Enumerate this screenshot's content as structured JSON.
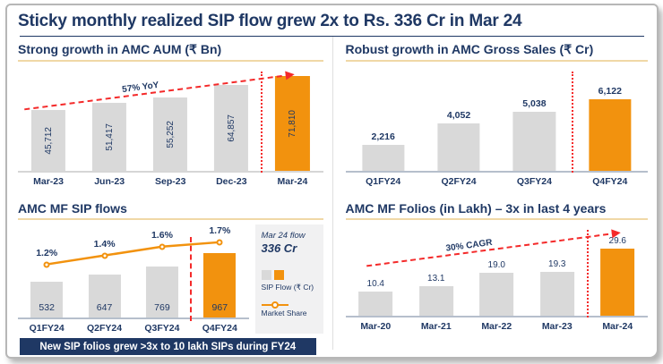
{
  "slide": {
    "title": "Sticky monthly realized SIP flow grew 2x to Rs. 336 Cr in Mar 24",
    "banner": "New SIP folios grew >3x to 10 lakh SIPs during FY24"
  },
  "colors": {
    "navy": "#1f3864",
    "orange": "#f2920e",
    "gray_bar": "#d9d9d9",
    "red": "#f42a2a",
    "section_underline": "#f0d8a6",
    "legend_bg": "#f1f1f2",
    "banner_bg": "#1f3864"
  },
  "chart_data": [
    {
      "id": "amc-aum",
      "type": "bar",
      "title": "Strong growth in AMC AUM (₹ Bn)",
      "categories": [
        "Mar-23",
        "Jun-23",
        "Sep-23",
        "Dec-23",
        "Mar-24"
      ],
      "values": [
        45712,
        51417,
        55252,
        64857,
        71810
      ],
      "value_labels": [
        "45,712",
        "51,417",
        "55,252",
        "64,857",
        "71,810"
      ],
      "highlight_index": 4,
      "highlight_color": "#f2920e",
      "annotation": "57% YoY",
      "ylim": [
        0,
        79000
      ],
      "label_position": "inside-rotated",
      "separator_before_last": true,
      "grid": false,
      "legend_position": "none"
    },
    {
      "id": "gross-sales",
      "type": "bar",
      "title": "Robust growth in AMC Gross Sales (₹ Cr)",
      "categories": [
        "Q1FY24",
        "Q2FY24",
        "Q3FY24",
        "Q4FY24"
      ],
      "values": [
        2216,
        4052,
        5038,
        6122
      ],
      "value_labels": [
        "2,216",
        "4,052",
        "5,038",
        "6,122"
      ],
      "highlight_index": 3,
      "highlight_color": "#f2920e",
      "ylim": [
        0,
        8900
      ],
      "label_position": "above",
      "separator_before_last": true,
      "grid": false,
      "legend_position": "none"
    },
    {
      "id": "sip-flows",
      "type": "bar+line",
      "title": "AMC MF SIP flows",
      "categories": [
        "Q1FY24",
        "Q2FY24",
        "Q3FY24",
        "Q4FY24"
      ],
      "series": [
        {
          "name": "SIP Flow (₹ Cr)",
          "type": "bar",
          "values": [
            532,
            647,
            769,
            967
          ],
          "value_labels": [
            "532",
            "647",
            "769",
            "967"
          ]
        },
        {
          "name": "Market Share",
          "type": "line",
          "values_pct": [
            1.2,
            1.4,
            1.6,
            1.7
          ],
          "value_labels": [
            "1.2%",
            "1.4%",
            "1.6%",
            "1.7%"
          ]
        }
      ],
      "highlight_index": 3,
      "highlight_color": "#f2920e",
      "bar_ylim": [
        0,
        1400
      ],
      "line_ylim": [
        0,
        2.1
      ],
      "label_position": "inside-bottom",
      "separator_before_last": true,
      "grid": false,
      "legend_position": "right",
      "legend": {
        "callout_title": "Mar 24 flow",
        "callout_value": "336 Cr",
        "bar_label": "SIP Flow (₹ Cr)",
        "line_label": "Market Share"
      }
    },
    {
      "id": "folios",
      "type": "bar",
      "title": "AMC MF Folios (in Lakh) – 3x in last 4 years",
      "categories": [
        "Mar-20",
        "Mar-21",
        "Mar-22",
        "Mar-23",
        "Mar-24"
      ],
      "values": [
        10.4,
        13.1,
        19.0,
        19.3,
        29.6
      ],
      "value_labels": [
        "10.4",
        "13.1",
        "19.0",
        "19.3",
        "29.6"
      ],
      "highlight_index": 4,
      "highlight_color": "#f2920e",
      "annotation": "30% CAGR",
      "ylim": [
        0,
        40
      ],
      "label_position": "above",
      "separator_before_last": true,
      "grid": false,
      "legend_position": "none"
    }
  ]
}
